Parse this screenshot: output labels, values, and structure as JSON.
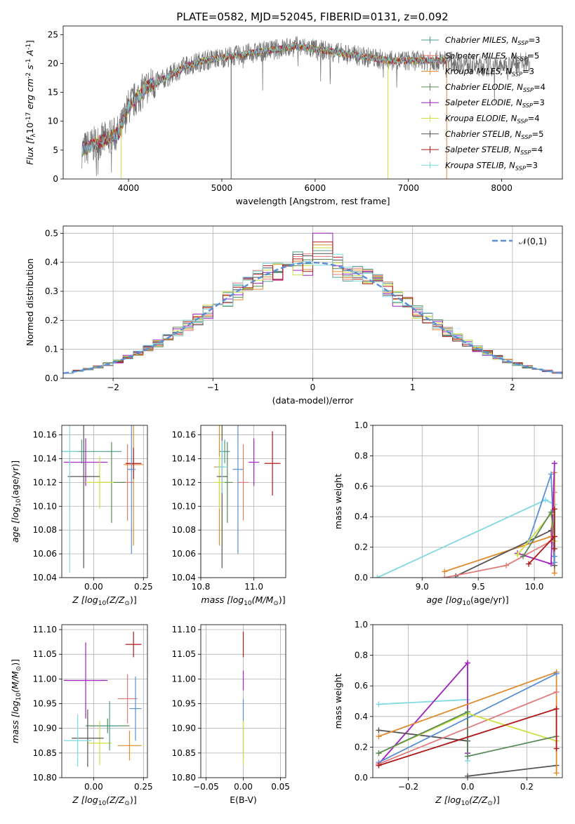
{
  "figure": {
    "title": "PLATE=0582, MJD=52045, FIBERID=0131, z=0.092",
    "colors": {
      "chabrier_miles": "#4f9e8e",
      "salpeter_miles": "#e07b7b",
      "kroupa_miles": "#e08a2e",
      "chabrier_elodie": "#5a8a5a",
      "salpeter_elodie": "#a020c0",
      "kroupa_elodie": "#d0e040",
      "chabrier_stelib": "#555555",
      "salpeter_stelib": "#b01818",
      "kroupa_stelib": "#80d8e0",
      "gauss": "#5b8fd6"
    }
  },
  "chart_data": [
    {
      "id": "spectrum",
      "type": "line",
      "xlabel": "wavelength [Angstrom, rest frame]",
      "ylabel": "Flux [f$_\\lambda$10$^{-17}$ erg cm$^{-2}$ s$^{-1}$ A$^{-1}$]",
      "xlim": [
        3300,
        8650
      ],
      "ylim": [
        0,
        26.5
      ],
      "xticks": [
        4000,
        5000,
        6000,
        7000,
        8000
      ],
      "yticks": [
        0,
        5,
        10,
        15,
        20,
        25
      ],
      "legend_position": "top-right",
      "legend": [
        {
          "label": "Chabrier MILES, N$_{SSP}$=3",
          "color": "#4f9e8e"
        },
        {
          "label": "Salpeter MILES, N$_{SSP}$=5",
          "color": "#e07b7b"
        },
        {
          "label": "Kroupa MILES, N$_{SSP}$=3",
          "color": "#e08a2e"
        },
        {
          "label": "Chabrier ELODIE, N$_{SSP}$=4",
          "color": "#5a8a5a"
        },
        {
          "label": "Salpeter ELODIE, N$_{SSP}$=3",
          "color": "#a020c0"
        },
        {
          "label": "Kroupa ELODIE, N$_{SSP}$=4",
          "color": "#d0e040"
        },
        {
          "label": "Chabrier STELIB, N$_{SSP}$=5",
          "color": "#555555"
        },
        {
          "label": "Salpeter STELIB, N$_{SSP}$=4",
          "color": "#b01818"
        },
        {
          "label": "Kroupa STELIB, N$_{SSP}$=3",
          "color": "#80d8e0"
        }
      ],
      "continuum": {
        "x": [
          3500,
          3700,
          3900,
          4000,
          4200,
          4400,
          4600,
          4800,
          5000,
          5200,
          5400,
          5600,
          5800,
          6000,
          6200,
          6400,
          6600,
          6800,
          7000,
          7200,
          7400,
          7600,
          7800,
          8000,
          8300
        ],
        "y": [
          5.0,
          6.5,
          8.0,
          12.5,
          16.0,
          17.5,
          19.5,
          20.5,
          21.0,
          21.5,
          22.0,
          22.5,
          23.0,
          22.5,
          22.0,
          21.5,
          21.0,
          20.5,
          20.5,
          20.5,
          20.5,
          20.0,
          19.5,
          19.5,
          20.5
        ]
      },
      "model_xrange": [
        3500,
        7400
      ],
      "data_xrange": [
        3500,
        8300
      ],
      "glitch_x": [
        3920,
        5100,
        6780,
        7410
      ]
    },
    {
      "id": "residuals",
      "type": "bar",
      "xlabel": "(data-model)/error",
      "ylabel": "Normed distribution",
      "xlim": [
        -2.5,
        2.5
      ],
      "ylim": [
        0,
        0.525
      ],
      "xticks": [
        -2,
        -1,
        0,
        1,
        2
      ],
      "yticks": [
        0.0,
        0.1,
        0.2,
        0.3,
        0.4,
        0.5
      ],
      "bin_width": 0.1,
      "legend_label": "$\\mathcal{N}(0,1)$",
      "legend_position": "top-right",
      "peak_values": [
        0.44,
        0.42,
        0.46,
        0.41,
        0.5,
        0.45,
        0.43,
        0.47,
        0.39
      ]
    },
    {
      "id": "age_vs_Z",
      "type": "scatter",
      "xlabel": "Z [log$_{10}$(Z/Z$_\\odot$)]",
      "ylabel": "age  [log$_{10}$($age/yr$)]",
      "xlim": [
        -0.16,
        0.27
      ],
      "ylim": [
        10.04,
        10.168
      ],
      "xticks": [
        0.0,
        0.25
      ],
      "xticklabels": [
        "0.00",
        "0.25"
      ],
      "yticks": [
        10.04,
        10.06,
        10.08,
        10.1,
        10.12,
        10.14,
        10.16
      ],
      "points": [
        {
          "x": -0.06,
          "y": 10.146,
          "xerr": 0.2,
          "yerr": 0.01,
          "color": "#4f9e8e"
        },
        {
          "x": 0.17,
          "y": 10.12,
          "xerr": 0.03,
          "yerr": 0.032,
          "color": "#e07b7b"
        },
        {
          "x": 0.2,
          "y": 10.135,
          "xerr": 0.05,
          "yerr": 0.068,
          "color": "#e08a2e"
        },
        {
          "x": 0.09,
          "y": 10.12,
          "xerr": 0.07,
          "yerr": 0.034,
          "color": "#5a8a5a"
        },
        {
          "x": -0.04,
          "y": 10.137,
          "xerr": 0.11,
          "yerr": 0.02,
          "color": "#a020c0"
        },
        {
          "x": 0.03,
          "y": 10.12,
          "xerr": 0.07,
          "yerr": 0.022,
          "color": "#d0e040"
        },
        {
          "x": -0.05,
          "y": 10.125,
          "xerr": 0.08,
          "yerr": 0.077,
          "color": "#555555"
        },
        {
          "x": 0.2,
          "y": 10.136,
          "xerr": 0.04,
          "yerr": 0.013,
          "color": "#b01818"
        },
        {
          "x": -0.12,
          "y": 10.146,
          "xerr": 0.04,
          "yerr": 0.102,
          "color": "#80d8e0"
        },
        {
          "x": 0.19,
          "y": 10.131,
          "xerr": 0.02,
          "yerr": 0.071,
          "color": "#5b8fd6"
        }
      ]
    },
    {
      "id": "age_vs_mass",
      "type": "scatter",
      "xlabel": "mass [log$_{10}$($M/M_\\odot$)]",
      "ylabel": "",
      "xlim": [
        10.8,
        11.12
      ],
      "ylim": [
        10.04,
        10.168
      ],
      "xticks": [
        10.8,
        11.0
      ],
      "xticklabels": [
        "10.8",
        "11.0"
      ],
      "yticks": [
        10.04,
        10.06,
        10.08,
        10.1,
        10.12,
        10.14,
        10.16
      ],
      "points": [
        {
          "x": 10.89,
          "y": 10.146,
          "xerr": 0.02,
          "yerr": 0.01,
          "color": "#4f9e8e"
        },
        {
          "x": 10.96,
          "y": 10.12,
          "xerr": 0.02,
          "yerr": 0.032,
          "color": "#e07b7b"
        },
        {
          "x": 10.87,
          "y": 10.133,
          "xerr": 0.02,
          "yerr": 0.066,
          "color": "#e08a2e"
        },
        {
          "x": 10.9,
          "y": 10.12,
          "xerr": 0.02,
          "yerr": 0.034,
          "color": "#5a8a5a"
        },
        {
          "x": 11.0,
          "y": 10.137,
          "xerr": 0.02,
          "yerr": 0.02,
          "color": "#a020c0"
        },
        {
          "x": 10.87,
          "y": 10.12,
          "xerr": 0.02,
          "yerr": 0.022,
          "color": "#d0e040"
        },
        {
          "x": 10.88,
          "y": 10.125,
          "xerr": 0.02,
          "yerr": 0.077,
          "color": "#555555"
        },
        {
          "x": 11.07,
          "y": 10.136,
          "xerr": 0.03,
          "yerr": 0.027,
          "color": "#b01818"
        },
        {
          "x": 10.88,
          "y": 10.133,
          "xerr": 0.02,
          "yerr": 0.022,
          "color": "#80d8e0"
        },
        {
          "x": 10.94,
          "y": 10.131,
          "xerr": 0.02,
          "yerr": 0.071,
          "color": "#5b8fd6"
        }
      ]
    },
    {
      "id": "weight_vs_age",
      "type": "line",
      "xlabel": "age  [log$_{10}$($age/yr$)]",
      "ylabel": "mass weight",
      "xlim": [
        8.56,
        10.25
      ],
      "ylim": [
        0.0,
        1.0
      ],
      "xticks": [
        9.0,
        9.5,
        10.0
      ],
      "xticklabels": [
        "9.0",
        "9.5",
        "10.0"
      ],
      "yticks": [
        0.0,
        0.2,
        0.4,
        0.6,
        0.8,
        1.0
      ],
      "series": [
        {
          "color": "#80d8e0",
          "x": [
            8.6,
            10.1,
            10.18
          ],
          "y": [
            0.0,
            0.51,
            0.48
          ]
        },
        {
          "color": "#e08a2e",
          "x": [
            9.2,
            10.15,
            10.18,
            10.18
          ],
          "y": [
            0.04,
            0.27,
            0.69,
            0.03
          ]
        },
        {
          "color": "#555555",
          "x": [
            9.3,
            10.15,
            10.17,
            10.18
          ],
          "y": [
            0.01,
            0.31,
            0.24,
            0.08
          ]
        },
        {
          "color": "#e07b7b",
          "x": [
            9.2,
            9.75,
            10.15,
            10.18
          ],
          "y": [
            0.0,
            0.08,
            0.24,
            0.56
          ]
        },
        {
          "color": "#5b8fd6",
          "x": [
            9.95,
            10.15,
            10.18,
            10.18
          ],
          "y": [
            0.24,
            0.68,
            0.14,
            0.1
          ]
        },
        {
          "color": "#a020c0",
          "x": [
            9.85,
            10.15,
            10.18
          ],
          "y": [
            0.16,
            0.09,
            0.75
          ]
        },
        {
          "color": "#d0e040",
          "x": [
            9.85,
            10.15,
            10.18
          ],
          "y": [
            0.15,
            0.42,
            0.24
          ]
        },
        {
          "color": "#5a8a5a",
          "x": [
            9.9,
            10.15,
            10.18
          ],
          "y": [
            0.14,
            0.43,
            0.27
          ]
        },
        {
          "color": "#b01818",
          "x": [
            9.95,
            10.18,
            10.18,
            10.18
          ],
          "y": [
            0.09,
            0.27,
            0.45,
            0.19
          ]
        }
      ]
    },
    {
      "id": "mass_vs_Z",
      "type": "scatter",
      "xlabel": "Z [log$_{10}$(Z/Z$_\\odot$)]",
      "ylabel": "mass [log$_{10}$($M/M_\\odot$)]",
      "xlim": [
        -0.16,
        0.27
      ],
      "ylim": [
        10.8,
        11.11
      ],
      "xticks": [
        0.0,
        0.25
      ],
      "xticklabels": [
        "0.00",
        "0.25"
      ],
      "yticks": [
        10.8,
        10.85,
        10.9,
        10.95,
        11.0,
        11.05,
        11.1
      ],
      "points": [
        {
          "x": 0.07,
          "y": 10.905,
          "xerr": 0.11,
          "yerr": 0.015,
          "color": "#5a8a5a"
        },
        {
          "x": 0.17,
          "y": 10.96,
          "xerr": 0.05,
          "yerr": 0.05,
          "color": "#e07b7b"
        },
        {
          "x": 0.18,
          "y": 10.865,
          "xerr": 0.06,
          "yerr": 0.03,
          "color": "#e08a2e"
        },
        {
          "x": -0.04,
          "y": 10.997,
          "xerr": 0.11,
          "yerr": 0.077,
          "color": "#a020c0"
        },
        {
          "x": 0.03,
          "y": 10.87,
          "xerr": 0.06,
          "yerr": 0.045,
          "color": "#d0e040"
        },
        {
          "x": -0.03,
          "y": 10.88,
          "xerr": 0.08,
          "yerr": 0.058,
          "color": "#555555"
        },
        {
          "x": 0.2,
          "y": 11.07,
          "xerr": 0.04,
          "yerr": 0.026,
          "color": "#b01818"
        },
        {
          "x": -0.08,
          "y": 10.875,
          "xerr": 0.07,
          "yerr": 0.053,
          "color": "#80d8e0"
        },
        {
          "x": 0.21,
          "y": 10.94,
          "xerr": 0.03,
          "yerr": 0.065,
          "color": "#5b8fd6"
        },
        {
          "x": 0.08,
          "y": 10.905,
          "xerr": 0.05,
          "yerr": 0.05,
          "color": "#4f9e8e"
        }
      ]
    },
    {
      "id": "mass_vs_ebv",
      "type": "scatter",
      "xlabel": "E(B-V)",
      "ylabel": "",
      "xlim": [
        -0.057,
        0.057
      ],
      "ylim": [
        10.8,
        11.11
      ],
      "xticks": [
        -0.05,
        0.0,
        0.05
      ],
      "xticklabels": [
        "−0.05",
        "0.00",
        "0.05"
      ],
      "yticks": [
        10.8,
        10.85,
        10.9,
        10.95,
        11.0,
        11.05,
        11.1
      ],
      "points": [
        {
          "x": 0.0,
          "y": 11.07,
          "xerr": 0.0,
          "yerr": 0.026,
          "color": "#b01818"
        },
        {
          "x": 0.0,
          "y": 10.997,
          "xerr": 0.0,
          "yerr": 0.02,
          "color": "#a020c0"
        },
        {
          "x": 0.0,
          "y": 10.94,
          "xerr": 0.0,
          "yerr": 0.02,
          "color": "#5b8fd6"
        },
        {
          "x": 0.0,
          "y": 10.88,
          "xerr": 0.0,
          "yerr": 0.04,
          "color": "#4f9e8e"
        },
        {
          "x": 0.0,
          "y": 10.87,
          "xerr": 0.0,
          "yerr": 0.045,
          "color": "#d0e040"
        }
      ]
    },
    {
      "id": "weight_vs_Z",
      "type": "line",
      "xlabel": "Z [log$_{10}$(Z/Z$_\\odot$)]",
      "ylabel": "mass weight",
      "xlim": [
        -0.32,
        0.32
      ],
      "ylim": [
        0.0,
        1.0
      ],
      "xticks": [
        -0.2,
        0.0,
        0.2
      ],
      "xticklabels": [
        "−0.2",
        "0.0",
        "0.2"
      ],
      "yticks": [
        0.0,
        0.2,
        0.4,
        0.6,
        0.8,
        1.0
      ],
      "series": [
        {
          "color": "#80d8e0",
          "x": [
            -0.3,
            0.0,
            0.0
          ],
          "y": [
            0.48,
            0.51,
            0.11
          ]
        },
        {
          "color": "#a020c0",
          "x": [
            -0.3,
            0.0,
            0.0
          ],
          "y": [
            0.09,
            0.75,
            0.16
          ]
        },
        {
          "color": "#555555",
          "x": [
            -0.3,
            0.0
          ],
          "y": [
            0.31,
            0.24
          ]
        },
        {
          "color": "#555555",
          "x": [
            0.0,
            0.3
          ],
          "y": [
            0.01,
            0.08
          ]
        },
        {
          "color": "#e08a2e",
          "x": [
            -0.3,
            0.3,
            0.3
          ],
          "y": [
            0.27,
            0.69,
            0.03
          ]
        },
        {
          "color": "#5b8fd6",
          "x": [
            -0.3,
            0.3
          ],
          "y": [
            0.1,
            0.68
          ]
        },
        {
          "color": "#e07b7b",
          "x": [
            -0.3,
            0.3
          ],
          "y": [
            0.09,
            0.56
          ]
        },
        {
          "color": "#d0e040",
          "x": [
            -0.3,
            0.0,
            0.3
          ],
          "y": [
            0.16,
            0.42,
            0.24
          ]
        },
        {
          "color": "#5a8a5a",
          "x": [
            -0.3,
            0.0,
            0.0,
            0.3
          ],
          "y": [
            0.16,
            0.43,
            0.14,
            0.27
          ]
        },
        {
          "color": "#b01818",
          "x": [
            -0.3,
            0.3,
            0.3
          ],
          "y": [
            0.08,
            0.45,
            0.19
          ]
        }
      ]
    }
  ]
}
